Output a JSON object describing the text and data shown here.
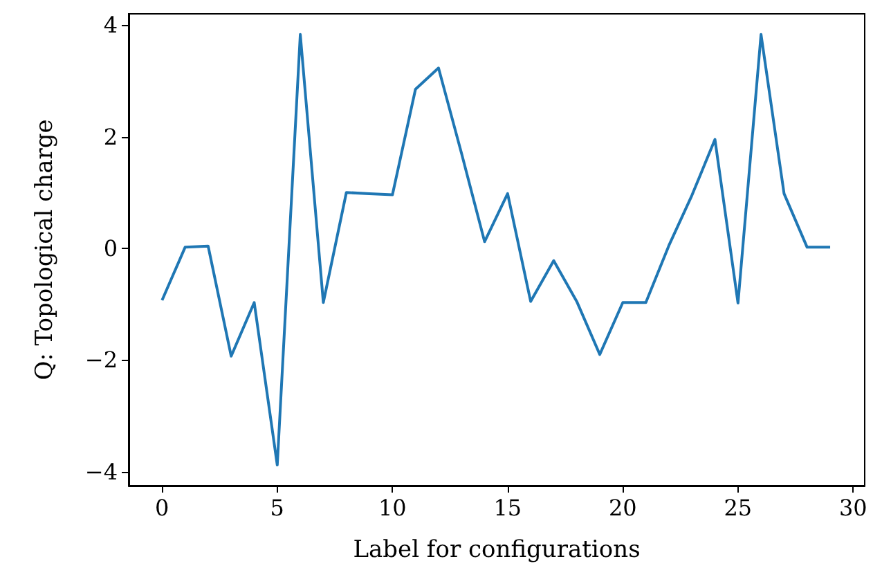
{
  "chart_data": {
    "type": "line",
    "xlabel": "Label for configurations",
    "ylabel": "Q: Topological charge",
    "x": [
      0,
      1,
      2,
      3,
      4,
      5,
      6,
      7,
      8,
      9,
      10,
      11,
      12,
      13,
      14,
      15,
      16,
      17,
      18,
      19,
      20,
      21,
      22,
      23,
      24,
      25,
      26,
      27,
      28,
      29
    ],
    "series": [
      {
        "color": "#1f77b4",
        "values": [
          -0.93,
          0.02,
          0.04,
          -1.93,
          -0.97,
          -3.88,
          3.83,
          -0.97,
          1.0,
          0.98,
          0.96,
          2.85,
          3.23,
          1.7,
          0.12,
          0.98,
          -0.95,
          -0.22,
          -0.95,
          -1.9,
          -0.97,
          -0.97,
          0.05,
          0.95,
          1.95,
          -0.98,
          3.83,
          0.98,
          0.02,
          0.02
        ]
      }
    ],
    "xlim": [
      -1.45,
      30.5
    ],
    "xticks": [
      0,
      5,
      10,
      15,
      20,
      25,
      30
    ],
    "ylim": [
      -4.25,
      4.2
    ],
    "yticks": [
      -4,
      -2,
      0,
      2,
      4
    ],
    "grid": false,
    "marker": "none",
    "line_style": "solid"
  }
}
